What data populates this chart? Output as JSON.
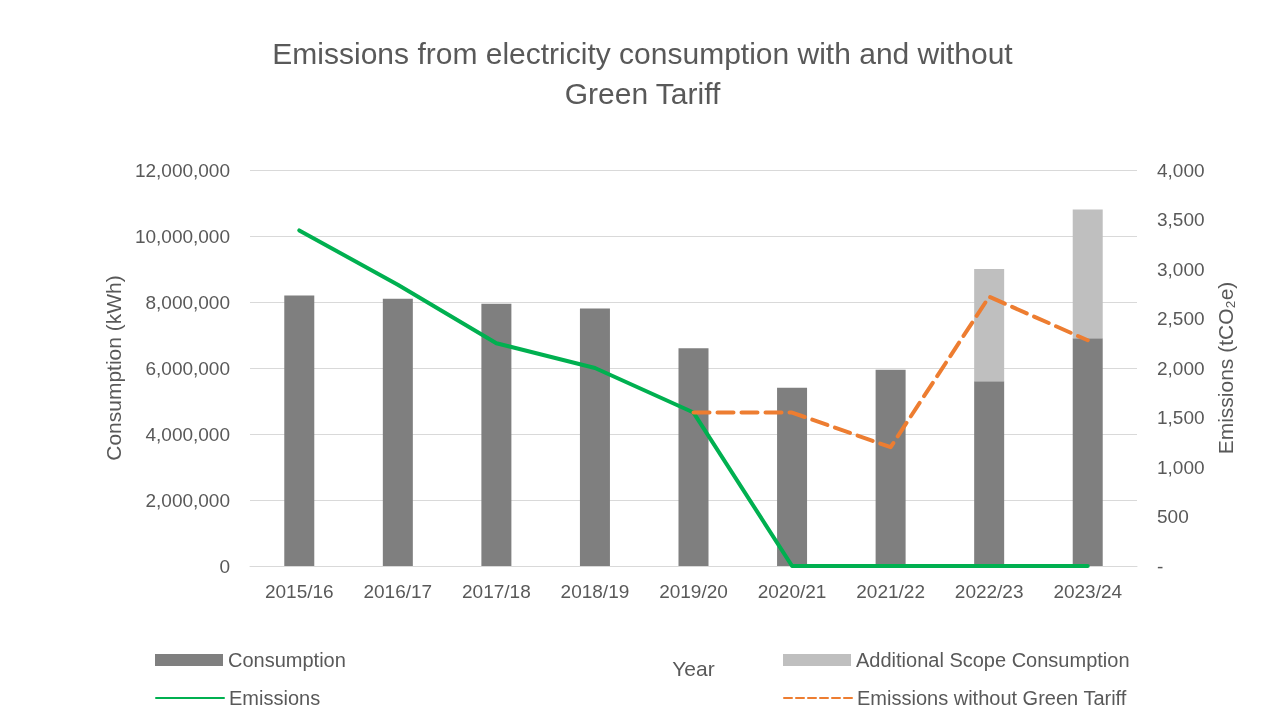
{
  "chart_data": {
    "type": "bar",
    "title": "Emissions from electricity consumption with and without\nGreen Tariff",
    "xlabel": "Year",
    "ylabel": "Consumption (kWh)",
    "y2label": "Emissions (tCO₂e)",
    "categories": [
      "2015/16",
      "2016/17",
      "2017/18",
      "2018/19",
      "2019/20",
      "2020/21",
      "2021/22",
      "2022/23",
      "2023/24"
    ],
    "stacked": true,
    "series": [
      {
        "name": "Consumption",
        "color": "#7f7f7f",
        "values": [
          8200000,
          8100000,
          7950000,
          7800000,
          6600000,
          5400000,
          5950000,
          5600000,
          6900000
        ]
      },
      {
        "name": "Additional Scope Consumption",
        "color": "#bfbfbf",
        "values": [
          null,
          null,
          null,
          null,
          null,
          null,
          null,
          3400000,
          3900000
        ]
      },
      {
        "name": "Emissions",
        "type": "line",
        "axis": "y2",
        "color": "#00b050",
        "line_style": "solid",
        "values": [
          3390,
          2840,
          2250,
          2000,
          1550,
          0,
          0,
          0,
          0
        ]
      },
      {
        "name": "Emissions without Green Tariff",
        "type": "line",
        "axis": "y2",
        "color": "#ed7d31",
        "line_style": "dashed",
        "values": [
          null,
          null,
          null,
          null,
          1550,
          1550,
          1200,
          2720,
          2280
        ]
      }
    ],
    "ylim": [
      0,
      12000000
    ],
    "yticks": [
      0,
      {
        "value": 2000000,
        "label": "2,000,000"
      },
      {
        "value": 4000000,
        "label": "4,000,000"
      },
      {
        "value": 6000000,
        "label": "6,000,000"
      },
      {
        "value": 8000000,
        "label": "8,000,000"
      },
      {
        "value": 10000000,
        "label": "10,000,000"
      },
      {
        "value": 12000000,
        "label": "12,000,000"
      }
    ],
    "y2lim": [
      0,
      4000
    ],
    "y2ticks": [
      {
        "value": 0,
        "label": "-"
      },
      500,
      {
        "value": 1000,
        "label": "1,000"
      },
      {
        "value": 1500,
        "label": "1,500"
      },
      {
        "value": 2000,
        "label": "2,000"
      },
      {
        "value": 2500,
        "label": "2,500"
      },
      {
        "value": 3000,
        "label": "3,000"
      },
      {
        "value": 3500,
        "label": "3,500"
      },
      {
        "value": 4000,
        "label": "4,000"
      }
    ],
    "grid": "y",
    "legend": "bottom",
    "marker": "none"
  }
}
